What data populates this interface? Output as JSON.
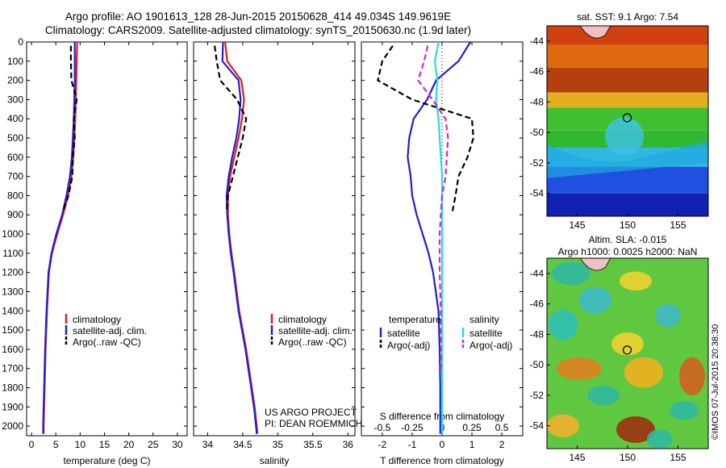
{
  "titles": {
    "line1": "Argo profile: AO 1901613_128 28-Jun-2015 20150628_414 49.034S 149.9619E",
    "line2": "Climatology: CARS2009. Satellite-adjusted climatology: synTS_20150630.nc (1.9d later)"
  },
  "colors": {
    "climatology": "#e41a1c",
    "satellite": "#1f1fd0",
    "argo": "#000000",
    "satellite_s": "#22dde0",
    "argo_s": "#d025d0"
  },
  "depth_axis": {
    "range": [
      0,
      2050
    ],
    "ticks": [
      "0",
      "100",
      "200",
      "300",
      "400",
      "500",
      "600",
      "700",
      "800",
      "900",
      "1000",
      "1100",
      "1200",
      "1300",
      "1400",
      "1500",
      "1600",
      "1700",
      "1800",
      "1900",
      "2000"
    ]
  },
  "chart_data": [
    {
      "type": "line",
      "panel": "temperature",
      "xlabel": "temperature (deg C)",
      "xlim": [
        -1,
        32
      ],
      "xticks": [
        0,
        5,
        10,
        15,
        20,
        25,
        30
      ],
      "ylim": [
        0,
        2050
      ],
      "legend": {
        "position": "middle-left",
        "entries": [
          "climatology",
          "satellite-adj. clim.",
          "Argo(..raw -QC)"
        ]
      },
      "series": [
        {
          "name": "climatology",
          "color_key": "climatology",
          "x": [
            9.4,
            9.3,
            9.2,
            9.1,
            9.0,
            8.8,
            8.6,
            8.2,
            7.5,
            6.5,
            5.3,
            4.2,
            3.6,
            3.2,
            2.9,
            2.7,
            2.6,
            2.5,
            2.5
          ],
          "y": [
            0,
            100,
            200,
            300,
            400,
            500,
            600,
            700,
            800,
            900,
            1000,
            1100,
            1200,
            1400,
            1600,
            1800,
            1900,
            2000,
            2040
          ]
        },
        {
          "name": "satellite-adj. clim.",
          "color_key": "satellite",
          "x": [
            8.9,
            8.9,
            8.9,
            8.8,
            8.7,
            8.5,
            8.3,
            7.9,
            7.2,
            6.3,
            5.1,
            4.1,
            3.5,
            3.1,
            2.8,
            2.6,
            2.5,
            2.4,
            2.4
          ],
          "y": [
            0,
            100,
            200,
            300,
            400,
            500,
            600,
            700,
            800,
            900,
            1000,
            1100,
            1200,
            1400,
            1600,
            1800,
            1900,
            2000,
            2040
          ]
        },
        {
          "name": "Argo(..raw -QC)",
          "color_key": "argo",
          "dashed": true,
          "x": [
            8.1,
            8.1,
            8.2,
            9.3,
            8.7,
            8.9,
            8.5,
            8.4,
            7.6,
            6.5
          ],
          "y": [
            20,
            100,
            200,
            300,
            400,
            500,
            600,
            700,
            800,
            880
          ]
        }
      ]
    },
    {
      "type": "line",
      "panel": "salinity",
      "xlabel": "salinity",
      "xlim": [
        33.8,
        36.1
      ],
      "xticks": [
        34,
        34.5,
        35,
        35.5,
        36
      ],
      "ylim": [
        0,
        2050
      ],
      "legend": {
        "position": "middle-right",
        "entries": [
          "climatology",
          "satellite-adj. clim.",
          "Argo(..raw -QC)"
        ]
      },
      "annotation": [
        "US ARGO PROJECT",
        "PI: DEAN ROEMMICH"
      ],
      "series": [
        {
          "name": "climatology",
          "color_key": "climatology",
          "x": [
            34.25,
            34.28,
            34.48,
            34.52,
            34.49,
            34.44,
            34.38,
            34.32,
            34.29,
            34.29,
            34.31,
            34.34,
            34.38,
            34.45,
            34.55,
            34.63,
            34.67,
            34.7,
            34.71
          ],
          "y": [
            0,
            100,
            200,
            300,
            400,
            500,
            600,
            700,
            800,
            900,
            1000,
            1100,
            1200,
            1400,
            1600,
            1800,
            1900,
            2000,
            2040
          ]
        },
        {
          "name": "satellite-adj. clim.",
          "color_key": "satellite",
          "x": [
            34.22,
            34.21,
            34.44,
            34.47,
            34.45,
            34.41,
            34.35,
            34.3,
            34.27,
            34.28,
            34.3,
            34.33,
            34.37,
            34.44,
            34.54,
            34.62,
            34.66,
            34.69,
            34.7
          ],
          "y": [
            0,
            100,
            200,
            300,
            400,
            500,
            600,
            700,
            800,
            900,
            1000,
            1100,
            1200,
            1400,
            1600,
            1800,
            1900,
            2000,
            2040
          ]
        },
        {
          "name": "Argo(..raw -QC)",
          "color_key": "argo",
          "dashed": true,
          "x": [
            34.1,
            34.13,
            34.18,
            34.42,
            34.55,
            34.5,
            34.43,
            34.36,
            34.29,
            34.27
          ],
          "y": [
            20,
            100,
            200,
            300,
            400,
            500,
            600,
            700,
            800,
            880
          ]
        }
      ]
    },
    {
      "type": "line",
      "panel": "differences",
      "xlabel": "T difference from climatology",
      "xlim": [
        -2.7,
        2.7
      ],
      "xticks": [
        -2,
        -1,
        0,
        1,
        2
      ],
      "xlabel_top": "S difference from climatology",
      "xticks_top": [
        "-0.5",
        "-0.25",
        "0",
        "0.25",
        "0.5"
      ],
      "ylim": [
        0,
        2050
      ],
      "legend": {
        "position": "middle",
        "columns": [
          {
            "header": "temperature",
            "entries": [
              "satellite",
              "Argo(-adj)"
            ]
          },
          {
            "header": "salinity",
            "entries": [
              "satellite",
              "Argo(-adj)"
            ]
          }
        ]
      },
      "series": [
        {
          "name": "satellite",
          "group": "temperature",
          "color_key": "satellite",
          "x": [
            0.95,
            0.55,
            -0.2,
            -0.5,
            -0.95,
            -1.1,
            -1.15,
            -1.05,
            -1.0,
            -0.85,
            -0.65,
            -0.45,
            -0.3,
            -0.12,
            -0.08,
            -0.06,
            -0.06
          ],
          "y": [
            0,
            100,
            200,
            300,
            400,
            500,
            600,
            700,
            800,
            900,
            1000,
            1100,
            1200,
            1400,
            1600,
            1800,
            2040
          ]
        },
        {
          "name": "Argo(-adj)",
          "group": "temperature",
          "color_key": "argo",
          "dashed": true,
          "x": [
            -1.65,
            -2.0,
            -2.15,
            -1.0,
            1.0,
            1.05,
            0.85,
            0.55,
            0.45,
            0.35
          ],
          "y": [
            20,
            100,
            200,
            300,
            400,
            500,
            600,
            700,
            800,
            880
          ]
        },
        {
          "name": "satellite",
          "group": "salinity",
          "color_key": "satellite_s",
          "x": [
            -0.03,
            -0.06,
            -0.04,
            -0.05,
            -0.03,
            -0.02,
            -0.01,
            0.0,
            0.0,
            0.0,
            0.0,
            0.0,
            0.0,
            0.0,
            0.0
          ],
          "y": [
            0,
            100,
            200,
            300,
            400,
            500,
            600,
            700,
            800,
            900,
            1000,
            1200,
            1400,
            1600,
            2040
          ]
        },
        {
          "name": "Argo(-adj)",
          "group": "salinity",
          "color_key": "argo_s",
          "dashed": true,
          "x": [
            -0.12,
            -0.15,
            -0.2,
            -0.08,
            0.03,
            0.05,
            0.04,
            0.03,
            0.0,
            -0.01,
            -0.02,
            -0.02,
            -0.02,
            -0.01,
            -0.01,
            -0.01
          ],
          "y": [
            20,
            100,
            200,
            300,
            400,
            500,
            600,
            700,
            800,
            900,
            1000,
            1100,
            1200,
            1400,
            1600,
            1720
          ]
        }
      ]
    },
    {
      "type": "heatmap",
      "panel": "sst-map",
      "title": "sat. SST: 9.1  Argo: 7.54",
      "xlim": [
        142,
        158
      ],
      "ylim": [
        -55.5,
        -43
      ],
      "xticks": [
        145,
        150,
        155
      ],
      "yticks": [
        -44,
        -46,
        -48,
        -50,
        -52,
        -54
      ],
      "marker": {
        "lon": 149.96,
        "lat": -49.03
      }
    },
    {
      "type": "heatmap",
      "panel": "sla-map",
      "title": "Altim. SLA: -0.015",
      "subtitle": "Argo h1000: 0.0025 h2000: NaN",
      "xlim": [
        142,
        158
      ],
      "ylim": [
        -55.5,
        -43
      ],
      "xticks": [
        145,
        150,
        155
      ],
      "yticks": [
        -44,
        -46,
        -48,
        -50,
        -52,
        -54
      ],
      "marker": {
        "lon": 149.96,
        "lat": -49.03
      }
    }
  ],
  "credit": "©IMOS 07-Jul-2015 20:38:30"
}
